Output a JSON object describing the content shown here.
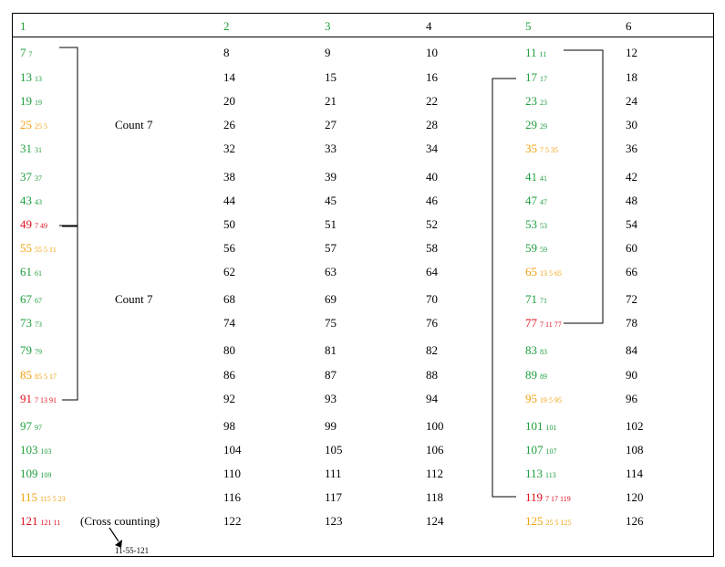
{
  "colors": {
    "prime": "#1e9e3e",
    "multiple_of_5": "#f2a20e",
    "multiple_of_7": "#e0101e",
    "plain": "#000000"
  },
  "headers": [
    {
      "text": "1",
      "color": "green"
    },
    {
      "text": "2",
      "color": "green"
    },
    {
      "text": "3",
      "color": "green"
    },
    {
      "text": "4",
      "color": "black"
    },
    {
      "text": "5",
      "color": "green"
    },
    {
      "text": "6",
      "color": "black"
    }
  ],
  "rows": [
    [
      {
        "n": "7",
        "sub": "7",
        "c": "g"
      },
      {
        "n": "8"
      },
      {
        "n": "9"
      },
      {
        "n": "10"
      },
      {
        "n": "11",
        "sub": "11",
        "c": "g"
      },
      {
        "n": "12"
      }
    ],
    [
      {
        "n": "13",
        "sub": "13",
        "c": "g"
      },
      {
        "n": "14"
      },
      {
        "n": "15"
      },
      {
        "n": "16"
      },
      {
        "n": "17",
        "sub": "17",
        "c": "g"
      },
      {
        "n": "18"
      }
    ],
    [
      {
        "n": "19",
        "sub": "19",
        "c": "g"
      },
      {
        "n": "20"
      },
      {
        "n": "21"
      },
      {
        "n": "22"
      },
      {
        "n": "23",
        "sub": "23",
        "c": "g"
      },
      {
        "n": "24"
      }
    ],
    [
      {
        "n": "25",
        "sub": "25 5",
        "c": "o"
      },
      {
        "n": "26"
      },
      {
        "n": "27"
      },
      {
        "n": "28"
      },
      {
        "n": "29",
        "sub": "29",
        "c": "g"
      },
      {
        "n": "30"
      }
    ],
    [
      {
        "n": "31",
        "sub": "31",
        "c": "g"
      },
      {
        "n": "32"
      },
      {
        "n": "33"
      },
      {
        "n": "34"
      },
      {
        "n": "35",
        "sub": "7 5 35",
        "c": "o"
      },
      {
        "n": "36"
      }
    ],
    [
      {
        "n": "37",
        "sub": "37",
        "c": "g"
      },
      {
        "n": "38"
      },
      {
        "n": "39"
      },
      {
        "n": "40"
      },
      {
        "n": "41",
        "sub": "41",
        "c": "g"
      },
      {
        "n": "42"
      }
    ],
    [
      {
        "n": "43",
        "sub": "43",
        "c": "g"
      },
      {
        "n": "44"
      },
      {
        "n": "45"
      },
      {
        "n": "46"
      },
      {
        "n": "47",
        "sub": "47",
        "c": "g"
      },
      {
        "n": "48"
      }
    ],
    [
      {
        "n": "49",
        "sub": "7 49",
        "c": "r"
      },
      {
        "n": "50"
      },
      {
        "n": "51"
      },
      {
        "n": "52"
      },
      {
        "n": "53",
        "sub": "53",
        "c": "g"
      },
      {
        "n": "54"
      }
    ],
    [
      {
        "n": "55",
        "sub": "55 5 11",
        "c": "o"
      },
      {
        "n": "56"
      },
      {
        "n": "57"
      },
      {
        "n": "58"
      },
      {
        "n": "59",
        "sub": "59",
        "c": "g"
      },
      {
        "n": "60"
      }
    ],
    [
      {
        "n": "61",
        "sub": "61",
        "c": "g"
      },
      {
        "n": "62"
      },
      {
        "n": "63"
      },
      {
        "n": "64"
      },
      {
        "n": "65",
        "sub": "13 5 65",
        "c": "o"
      },
      {
        "n": "66"
      }
    ],
    [
      {
        "n": "67",
        "sub": "67",
        "c": "g"
      },
      {
        "n": "68"
      },
      {
        "n": "69"
      },
      {
        "n": "70"
      },
      {
        "n": "71",
        "sub": "71",
        "c": "g"
      },
      {
        "n": "72"
      }
    ],
    [
      {
        "n": "73",
        "sub": "73",
        "c": "g"
      },
      {
        "n": "74"
      },
      {
        "n": "75"
      },
      {
        "n": "76"
      },
      {
        "n": "77",
        "sub": "7 11 77",
        "c": "r"
      },
      {
        "n": "78"
      }
    ],
    [
      {
        "n": "79",
        "sub": "79",
        "c": "g"
      },
      {
        "n": "80"
      },
      {
        "n": "81"
      },
      {
        "n": "82"
      },
      {
        "n": "83",
        "sub": "83",
        "c": "g"
      },
      {
        "n": "84"
      }
    ],
    [
      {
        "n": "85",
        "sub": "85 5 17",
        "c": "o"
      },
      {
        "n": "86"
      },
      {
        "n": "87"
      },
      {
        "n": "88"
      },
      {
        "n": "89",
        "sub": "89",
        "c": "g"
      },
      {
        "n": "90"
      }
    ],
    [
      {
        "n": "91",
        "sub": "7 13 91",
        "c": "r"
      },
      {
        "n": "92"
      },
      {
        "n": "93"
      },
      {
        "n": "94"
      },
      {
        "n": "95",
        "sub": "19 5 95",
        "c": "o"
      },
      {
        "n": "96"
      }
    ],
    [
      {
        "n": "97",
        "sub": "97",
        "c": "g"
      },
      {
        "n": "98"
      },
      {
        "n": "99"
      },
      {
        "n": "100"
      },
      {
        "n": "101",
        "sub": "101",
        "c": "g"
      },
      {
        "n": "102"
      }
    ],
    [
      {
        "n": "103",
        "sub": "103",
        "c": "g"
      },
      {
        "n": "104"
      },
      {
        "n": "105"
      },
      {
        "n": "106"
      },
      {
        "n": "107",
        "sub": "107",
        "c": "g"
      },
      {
        "n": "108"
      }
    ],
    [
      {
        "n": "109",
        "sub": "109",
        "c": "g"
      },
      {
        "n": "110"
      },
      {
        "n": "111"
      },
      {
        "n": "112"
      },
      {
        "n": "113",
        "sub": "113",
        "c": "g"
      },
      {
        "n": "114"
      }
    ],
    [
      {
        "n": "115",
        "sub": "115 5 23",
        "c": "o"
      },
      {
        "n": "116"
      },
      {
        "n": "117"
      },
      {
        "n": "118"
      },
      {
        "n": "119",
        "sub": "7 17 119",
        "c": "r"
      },
      {
        "n": "120"
      }
    ],
    [
      {
        "n": "121",
        "sub": "121 11",
        "c": "r"
      },
      {
        "n": "122"
      },
      {
        "n": "123"
      },
      {
        "n": "124"
      },
      {
        "n": "125",
        "sub": "25 5 125",
        "c": "o"
      },
      {
        "n": "126"
      }
    ]
  ],
  "annotations": {
    "count_upper": "Count 7",
    "count_lower": "Count 7",
    "cross_counting": "(Cross counting)",
    "cross_sequence": "11-55-121"
  }
}
